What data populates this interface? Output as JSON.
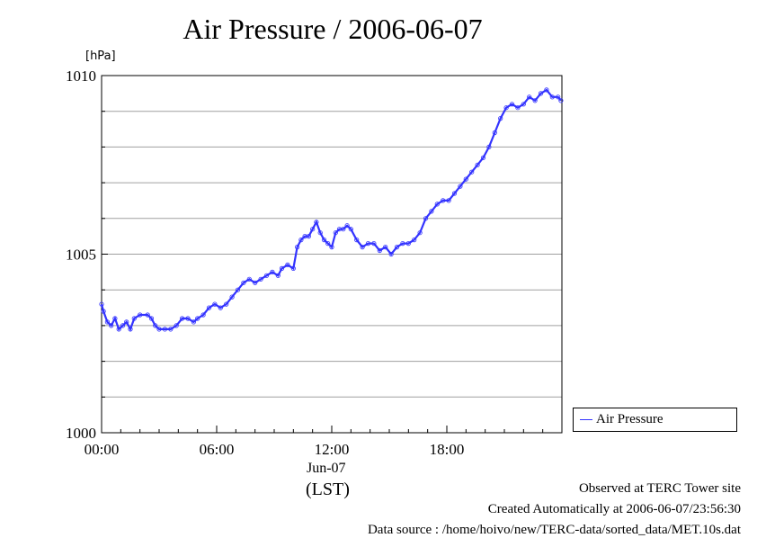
{
  "title": "Air Pressure / 2006-06-07",
  "unit_label": "[hPa]",
  "date_label": "Jun-07",
  "timezone_label": "(LST)",
  "legend_label": "Air Pressure",
  "footer": {
    "observed": "Observed at TERC Tower site",
    "created": "Created Automatically at 2006-06-07/23:56:30",
    "source": "Data source : /home/hoivo/new/TERC-data/sorted_data/MET.10s.dat"
  },
  "colors": {
    "series": "#3333ff",
    "grid": "#a0a0a0"
  },
  "chart_data": {
    "type": "line",
    "title": "Air Pressure / 2006-06-07",
    "ylabel": "[hPa]",
    "xlabel": "(LST)",
    "ylim": [
      1000,
      1010
    ],
    "xlim": [
      0,
      24
    ],
    "y_ticks": [
      "1010",
      "1005",
      "1000"
    ],
    "y_tick_values": [
      1010,
      1005,
      1000
    ],
    "x_ticks": [
      "00:00",
      "06:00",
      "12:00",
      "18:00"
    ],
    "x_tick_values": [
      0,
      6,
      12,
      18
    ],
    "grid": "horizontal",
    "legend_position": "right",
    "series": [
      {
        "name": "Air Pressure",
        "x": [
          0.0,
          0.1,
          0.3,
          0.5,
          0.7,
          0.9,
          1.1,
          1.3,
          1.5,
          1.7,
          2.0,
          2.4,
          2.6,
          2.8,
          3.0,
          3.3,
          3.6,
          3.9,
          4.2,
          4.5,
          4.8,
          5.0,
          5.3,
          5.6,
          5.9,
          6.2,
          6.5,
          6.8,
          7.1,
          7.4,
          7.7,
          8.0,
          8.3,
          8.6,
          8.9,
          9.2,
          9.4,
          9.7,
          10.0,
          10.2,
          10.4,
          10.6,
          10.8,
          11.0,
          11.2,
          11.4,
          11.6,
          11.8,
          12.0,
          12.2,
          12.4,
          12.6,
          12.8,
          13.0,
          13.3,
          13.6,
          13.9,
          14.2,
          14.5,
          14.8,
          15.1,
          15.4,
          15.7,
          16.0,
          16.3,
          16.6,
          16.9,
          17.2,
          17.5,
          17.8,
          18.1,
          18.4,
          18.7,
          19.0,
          19.3,
          19.6,
          19.9,
          20.2,
          20.5,
          20.8,
          21.1,
          21.4,
          21.7,
          22.0,
          22.3,
          22.6,
          22.9,
          23.2,
          23.5,
          23.8,
          23.95
        ],
        "values": [
          1003.6,
          1003.4,
          1003.1,
          1003.0,
          1003.2,
          1002.9,
          1003.0,
          1003.1,
          1002.9,
          1003.2,
          1003.3,
          1003.3,
          1003.2,
          1003.0,
          1002.9,
          1002.9,
          1002.9,
          1003.0,
          1003.2,
          1003.2,
          1003.1,
          1003.2,
          1003.3,
          1003.5,
          1003.6,
          1003.5,
          1003.6,
          1003.8,
          1004.0,
          1004.2,
          1004.3,
          1004.2,
          1004.3,
          1004.4,
          1004.5,
          1004.4,
          1004.6,
          1004.7,
          1004.6,
          1005.2,
          1005.4,
          1005.5,
          1005.5,
          1005.7,
          1005.9,
          1005.6,
          1005.4,
          1005.3,
          1005.2,
          1005.6,
          1005.7,
          1005.7,
          1005.8,
          1005.7,
          1005.4,
          1005.2,
          1005.3,
          1005.3,
          1005.1,
          1005.2,
          1005.0,
          1005.2,
          1005.3,
          1005.3,
          1005.4,
          1005.6,
          1006.0,
          1006.2,
          1006.4,
          1006.5,
          1006.5,
          1006.7,
          1006.9,
          1007.1,
          1007.3,
          1007.5,
          1007.7,
          1008.0,
          1008.4,
          1008.8,
          1009.1,
          1009.2,
          1009.1,
          1009.2,
          1009.4,
          1009.3,
          1009.5,
          1009.6,
          1009.4,
          1009.4,
          1009.3
        ]
      }
    ]
  }
}
